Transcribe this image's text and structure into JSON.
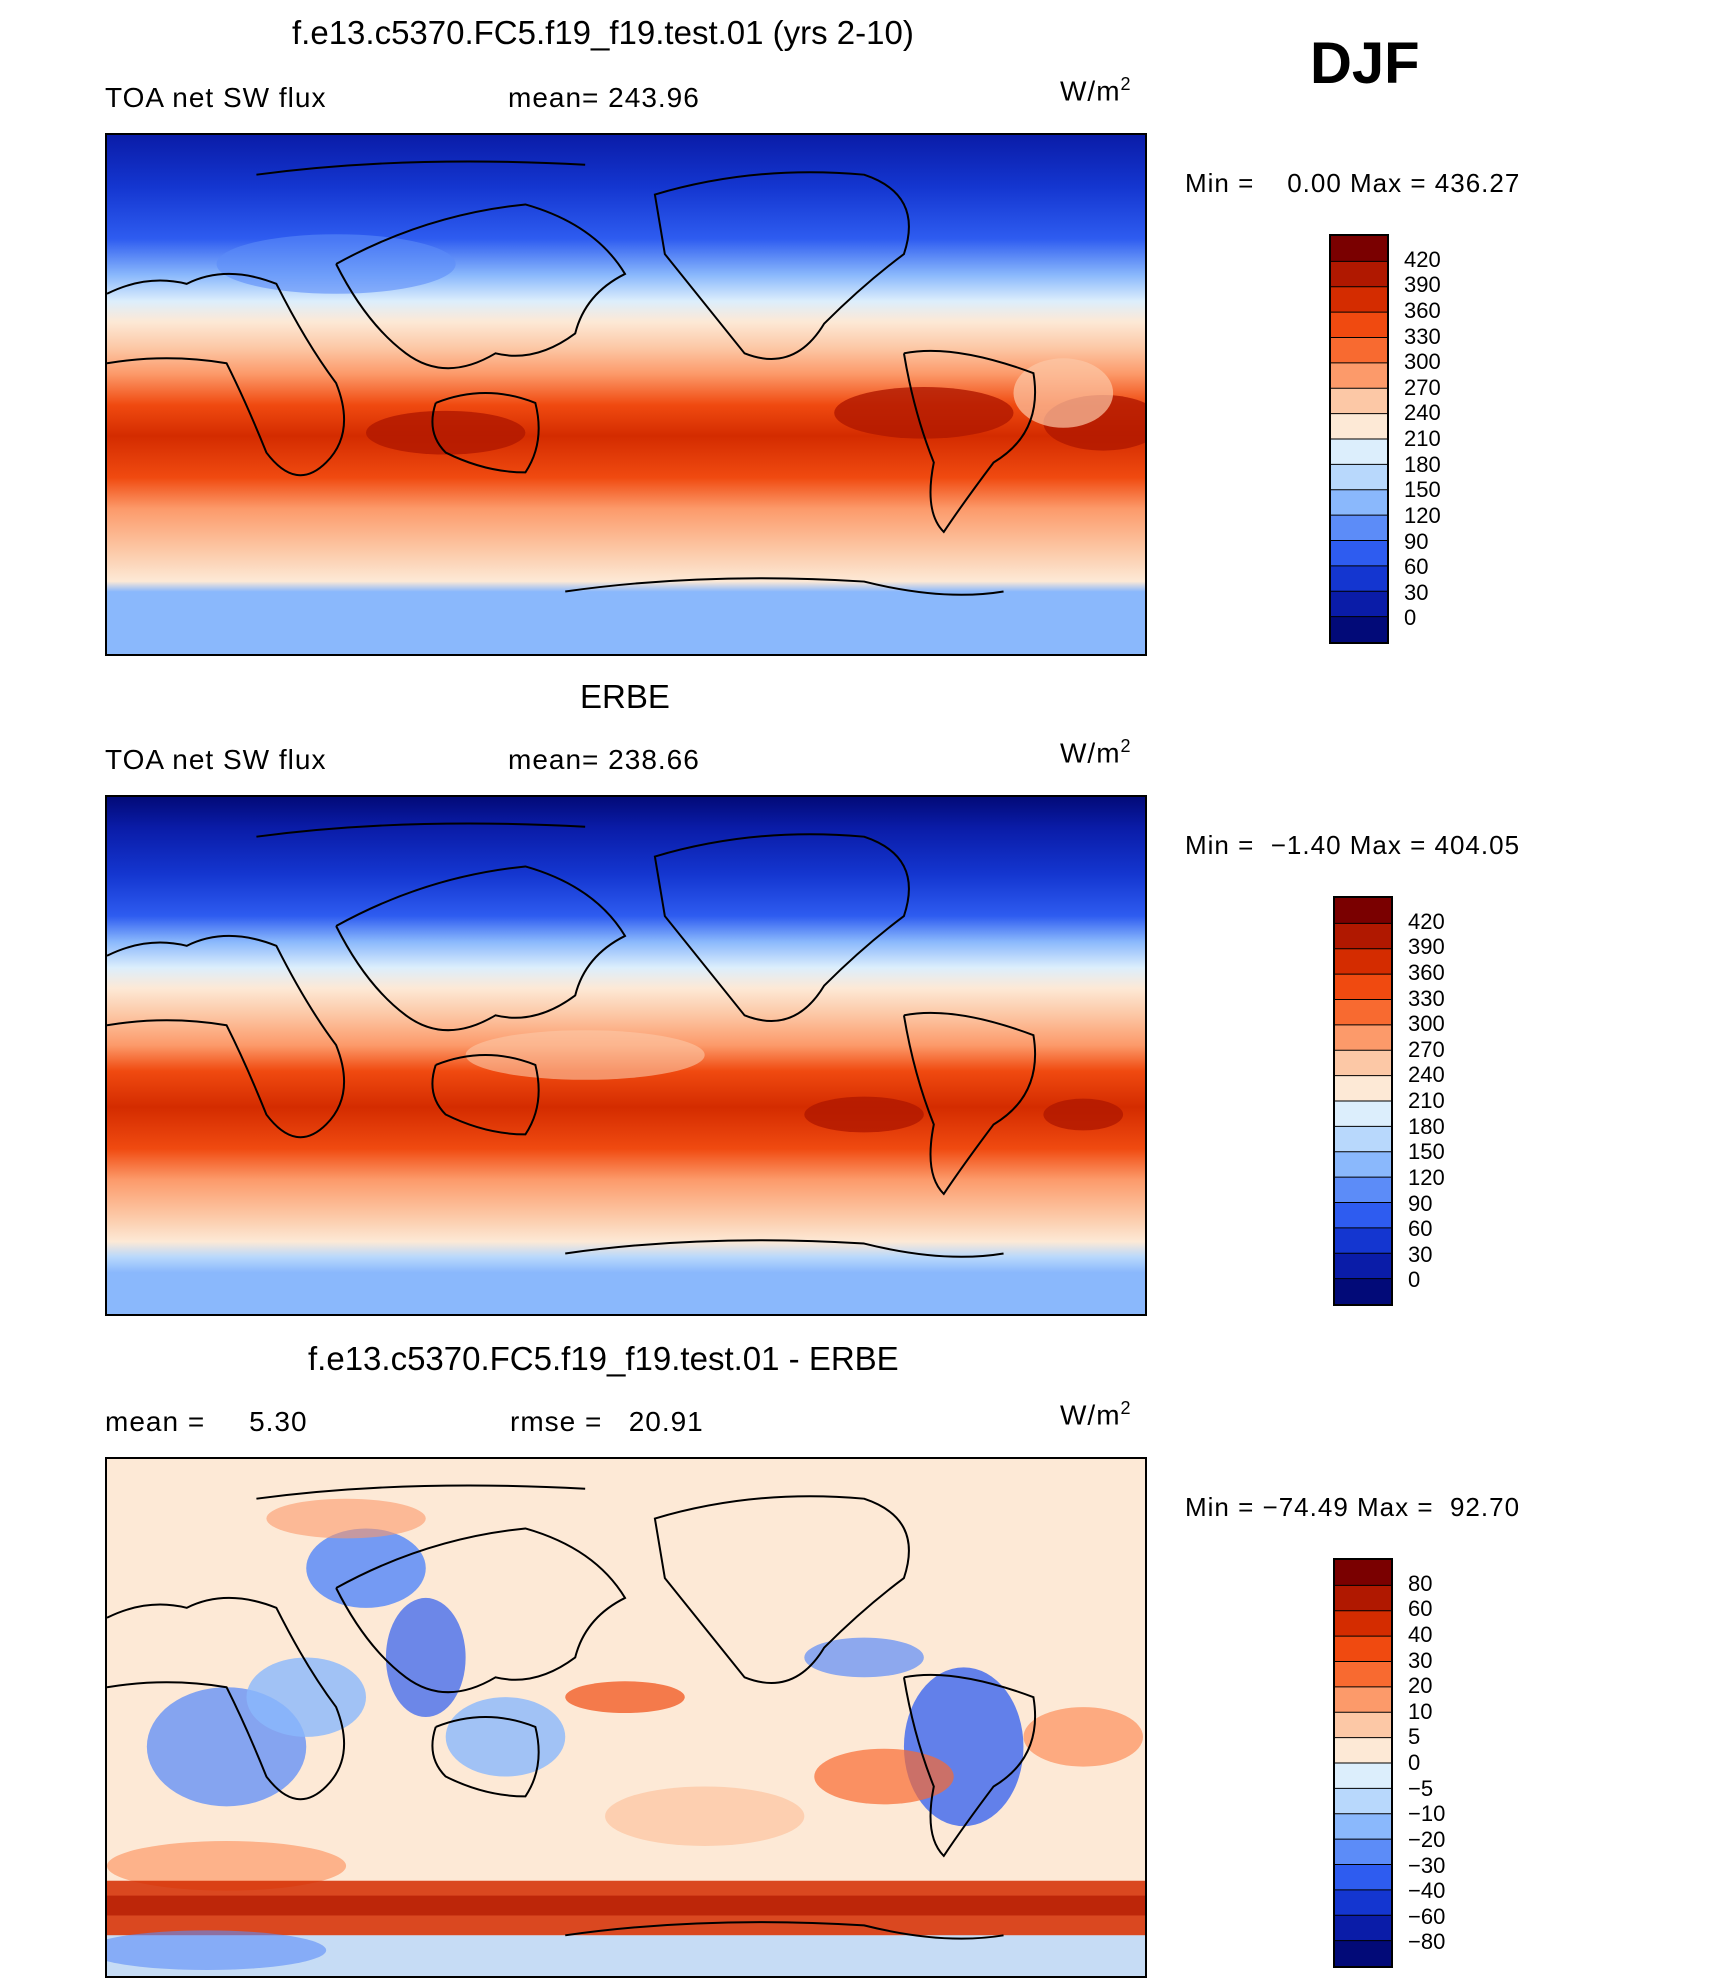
{
  "season": "DJF",
  "panels": [
    {
      "id": "model",
      "title": "f.e13.c5370.FC5.f19_f19.test.01 (yrs 2-10)",
      "left_label": "TOA net SW flux",
      "stat_label": "mean= 243.96",
      "units": "W/m",
      "units_sup": "2",
      "minmax": "Min =    0.00 Max = 436.27",
      "colorbar_labels": [
        "420",
        "390",
        "360",
        "330",
        "300",
        "270",
        "240",
        "210",
        "180",
        "150",
        "120",
        "90",
        "60",
        "30",
        "0"
      ]
    },
    {
      "id": "obs",
      "title": "ERBE",
      "left_label": "TOA net SW flux",
      "stat_label": "mean= 238.66",
      "units": "W/m",
      "units_sup": "2",
      "minmax": "Min =  −1.40 Max = 404.05",
      "colorbar_labels": [
        "420",
        "390",
        "360",
        "330",
        "300",
        "270",
        "240",
        "210",
        "180",
        "150",
        "120",
        "90",
        "60",
        "30",
        "0"
      ]
    },
    {
      "id": "diff",
      "title": "f.e13.c5370.FC5.f19_f19.test.01 - ERBE",
      "left_label": "mean =     5.30",
      "stat_label": "rmse =   20.91",
      "units": "W/m",
      "units_sup": "2",
      "minmax": "Min = −74.49 Max =  92.70",
      "colorbar_labels": [
        "80",
        "60",
        "40",
        "30",
        "20",
        "10",
        "5",
        "0",
        "−5",
        "−10",
        "−20",
        "−30",
        "−40",
        "−60",
        "−80"
      ]
    }
  ],
  "colors": {
    "abs_scale": [
      "#7a0000",
      "#b01800",
      "#d42c00",
      "#f04a10",
      "#f86a30",
      "#fc9a6a",
      "#fcc8a6",
      "#fde9d6",
      "#dceefc",
      "#b8d8fc",
      "#8ab8fc",
      "#5c8cf8",
      "#2e5cf0",
      "#1436d0",
      "#0a1ca8",
      "#020a78"
    ],
    "diff_scale": [
      "#7a0000",
      "#b01800",
      "#d42c00",
      "#f04a10",
      "#f86a30",
      "#fc9a6a",
      "#fcc8a6",
      "#fde9d6",
      "#dceefc",
      "#b8d8fc",
      "#8ab8fc",
      "#5c8cf8",
      "#2e5cf0",
      "#1436d0",
      "#0a1ca8",
      "#020a78"
    ]
  }
}
